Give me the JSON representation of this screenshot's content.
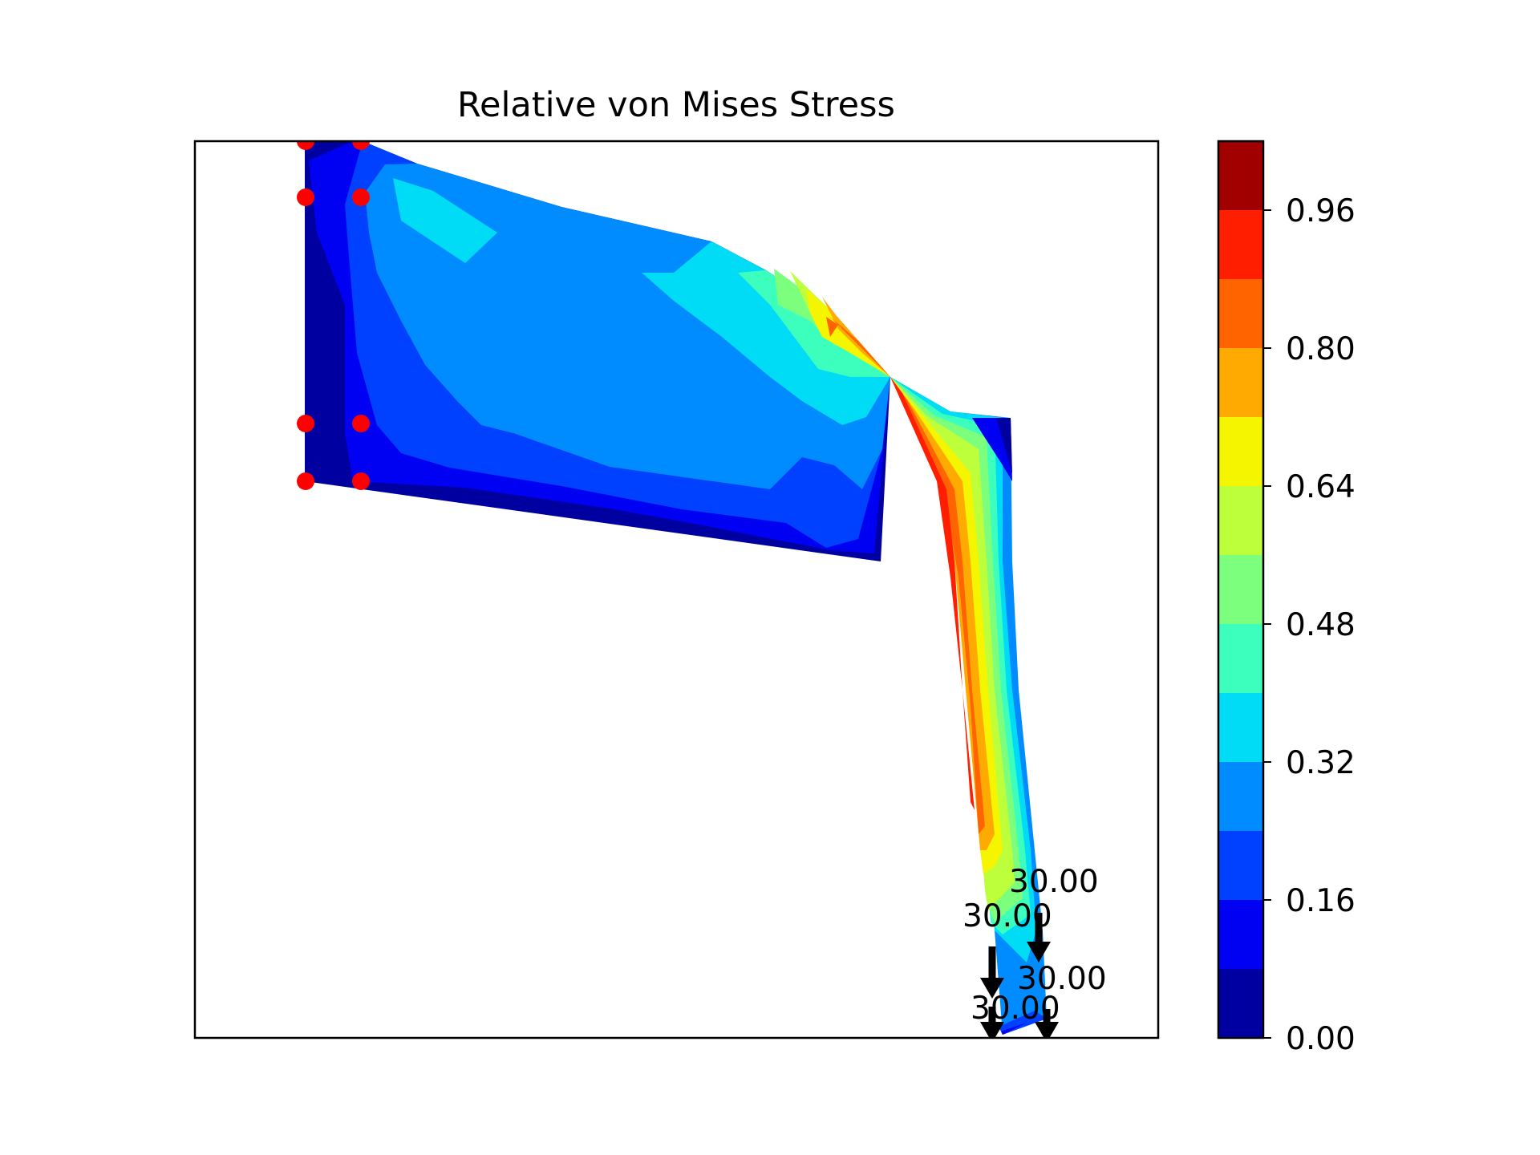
{
  "chart_data": {
    "type": "heatmap",
    "title": "Relative von Mises Stress",
    "xlabel": "",
    "ylabel": "",
    "grid": false,
    "axes_ticks": "none",
    "colormap": "jet",
    "colorbar": {
      "location": "right",
      "range": [
        0.0,
        1.04
      ],
      "level_step": 0.08,
      "levels": [
        0.0,
        0.08,
        0.16,
        0.24,
        0.32,
        0.4,
        0.48,
        0.56,
        0.64,
        0.72,
        0.8,
        0.88,
        0.96,
        1.04
      ],
      "tick_values": [
        0.0,
        0.16,
        0.32,
        0.48,
        0.64,
        0.8,
        0.96
      ],
      "tick_labels": [
        "0.00",
        "0.16",
        "0.32",
        "0.48",
        "0.64",
        "0.80",
        "0.96"
      ],
      "band_colors": [
        "#0000a0",
        "#0000f2",
        "#0040ff",
        "#008cff",
        "#00dcf5",
        "#3cffbe",
        "#7cff7c",
        "#beff3c",
        "#f5f500",
        "#ffaa00",
        "#ff6400",
        "#ff1e00",
        "#a00000"
      ]
    },
    "constraints": {
      "marker": "red dot",
      "count": 8
    },
    "loads": [
      {
        "label": "30.00",
        "direction": "down"
      },
      {
        "label": "30.00",
        "direction": "down"
      },
      {
        "label": "30.00",
        "direction": "down"
      },
      {
        "label": "30.00",
        "direction": "down"
      }
    ]
  }
}
